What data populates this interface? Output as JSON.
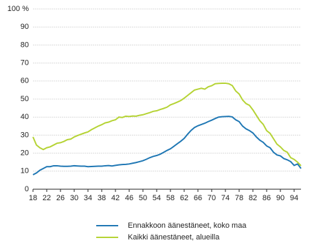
{
  "chart_data": {
    "type": "line",
    "x": [
      18,
      19,
      20,
      21,
      22,
      23,
      24,
      25,
      26,
      27,
      28,
      29,
      30,
      31,
      32,
      33,
      34,
      35,
      36,
      37,
      38,
      39,
      40,
      41,
      42,
      43,
      44,
      45,
      46,
      47,
      48,
      49,
      50,
      51,
      52,
      53,
      54,
      55,
      56,
      57,
      58,
      59,
      60,
      61,
      62,
      63,
      64,
      65,
      66,
      67,
      68,
      69,
      70,
      71,
      72,
      73,
      74,
      75,
      76,
      77,
      78,
      79,
      80,
      81,
      82,
      83,
      84,
      85,
      86,
      87,
      88,
      89,
      90,
      91,
      92,
      93,
      94,
      95,
      96
    ],
    "series": [
      {
        "name": "Ennakkoon äänestäneet, koko maa",
        "color": "#1f77b4",
        "values": [
          8,
          9,
          10.5,
          11.5,
          12.5,
          12.5,
          13,
          13,
          12.8,
          12.7,
          12.7,
          12.8,
          13,
          12.9,
          12.8,
          12.8,
          12.5,
          12.6,
          12.7,
          12.8,
          12.8,
          13,
          13.1,
          12.9,
          13.2,
          13.5,
          13.7,
          13.8,
          14,
          14.4,
          14.8,
          15.3,
          15.8,
          16.6,
          17.5,
          18.2,
          18.7,
          19.4,
          20.4,
          21.5,
          22.4,
          23.8,
          25.2,
          26.6,
          28.2,
          30.5,
          32.6,
          34.2,
          35.2,
          35.9,
          36.6,
          37.5,
          38.3,
          39.2,
          40,
          40.2,
          40.3,
          40.4,
          40.1,
          38.5,
          37.5,
          35,
          33.5,
          32.5,
          31.2,
          29,
          27.2,
          26,
          24,
          23,
          20.5,
          19,
          18.5,
          17,
          16.3,
          15.3,
          13.2,
          14,
          11.5
        ]
      },
      {
        "name": "Kaikki äänestäneet, alueilla",
        "color": "#b5d334",
        "values": [
          29,
          24.5,
          23,
          22,
          23,
          23.5,
          24.5,
          25.5,
          25.8,
          26.5,
          27.5,
          27.8,
          29,
          29.8,
          30.5,
          31.2,
          31.8,
          33,
          34,
          35,
          35.8,
          36.8,
          37.2,
          38,
          38.5,
          40,
          39.8,
          40.5,
          40.3,
          40.6,
          40.5,
          41,
          41.3,
          41.9,
          42.5,
          43.2,
          43.5,
          44.2,
          44.8,
          45.5,
          46.8,
          47.5,
          48.3,
          49.2,
          50.5,
          52,
          53.5,
          55,
          55.5,
          56,
          55.5,
          56.8,
          57.4,
          58.5,
          58.7,
          58.8,
          58.8,
          58.5,
          57.5,
          54.5,
          52.8,
          49.5,
          47.5,
          46.5,
          44,
          41,
          38,
          36,
          32.5,
          31,
          28,
          25,
          23.5,
          21.5,
          20.5,
          17.5,
          16.5,
          15,
          13
        ]
      }
    ],
    "xlim": [
      18,
      96
    ],
    "xticks": [
      18,
      22,
      26,
      30,
      34,
      38,
      42,
      46,
      50,
      54,
      58,
      62,
      66,
      70,
      74,
      78,
      82,
      86,
      90,
      94
    ],
    "ylim": [
      0,
      100
    ],
    "yticks": [
      0,
      10,
      20,
      30,
      40,
      50,
      60,
      70,
      80,
      90,
      {
        "value": 100,
        "label": "100 %"
      }
    ],
    "grid": true
  }
}
